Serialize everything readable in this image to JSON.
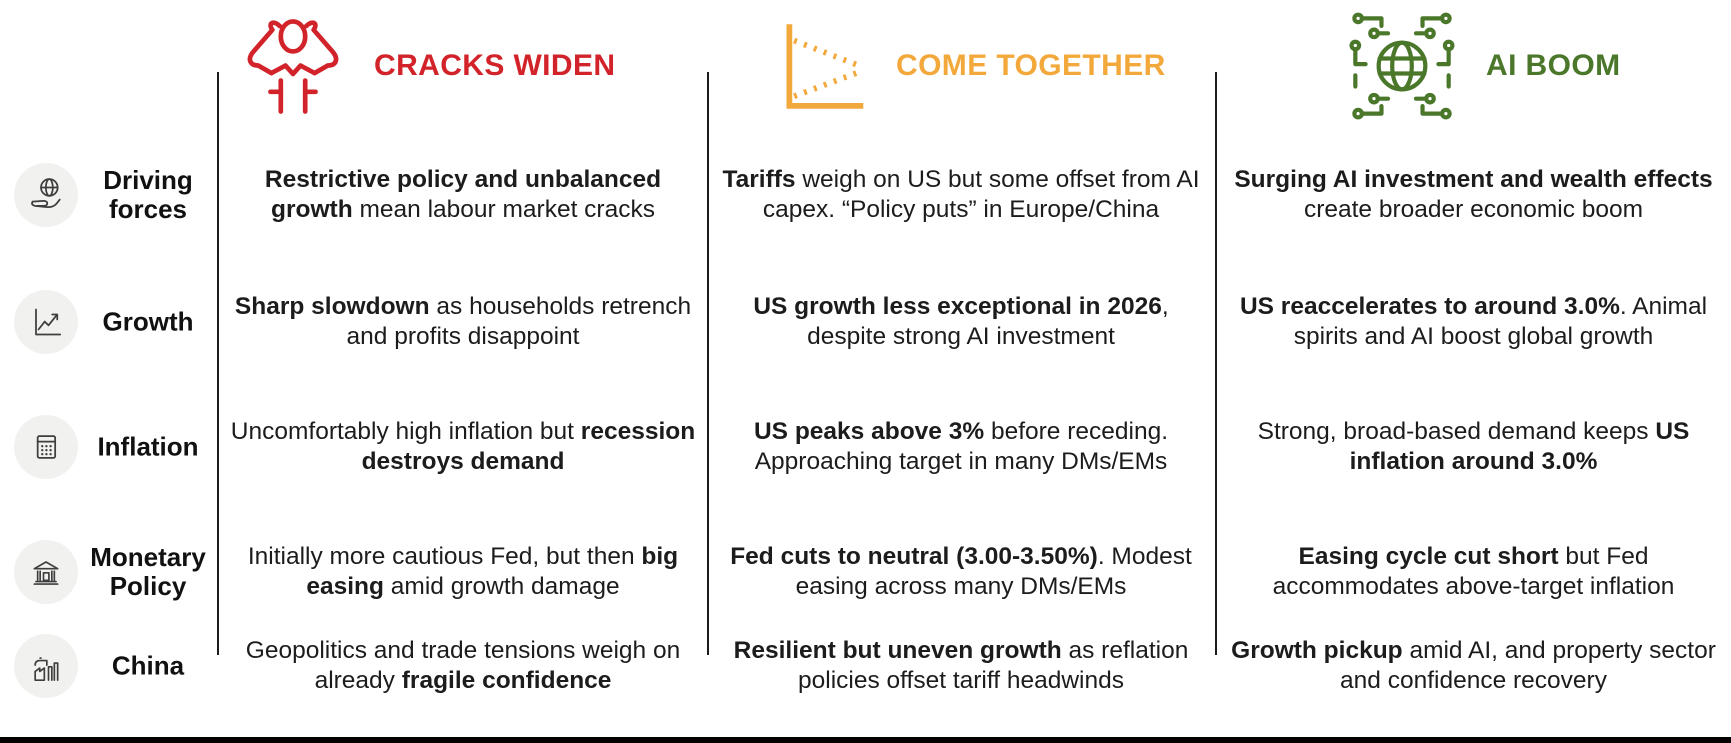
{
  "scenarios": [
    {
      "title": "CRACKS WIDEN",
      "color": "#D2232A",
      "icon": "person-head-in-hands-icon"
    },
    {
      "title": "COME TOGETHER",
      "color": "#F3A83B",
      "icon": "converging-lines-chart-icon"
    },
    {
      "title": "AI BOOM",
      "color": "#4A7729",
      "icon": "circuit-globe-icon"
    }
  ],
  "rows": [
    {
      "label": "Driving forces",
      "icon": "globe-in-hand-icon",
      "cells": [
        [
          {
            "t": "Restrictive policy and unbalanced growth",
            "b": true
          },
          {
            "t": " mean labour market cracks",
            "b": false
          }
        ],
        [
          {
            "t": "Tariffs",
            "b": true
          },
          {
            "t": " weigh on US but some offset from AI capex. “Policy puts” in Europe/China",
            "b": false
          }
        ],
        [
          {
            "t": "Surging AI investment and wealth effects",
            "b": true
          },
          {
            "t": " create broader economic boom",
            "b": false
          }
        ]
      ]
    },
    {
      "label": "Growth",
      "icon": "line-chart-up-icon",
      "cells": [
        [
          {
            "t": "Sharp slowdown",
            "b": true
          },
          {
            "t": " as households retrench and profits disappoint",
            "b": false
          }
        ],
        [
          {
            "t": "US growth less exceptional in 2026",
            "b": true
          },
          {
            "t": ", despite strong AI investment",
            "b": false
          }
        ],
        [
          {
            "t": "US reaccelerates to around 3.0%",
            "b": true
          },
          {
            "t": ". Animal spirits and AI boost global growth",
            "b": false
          }
        ]
      ]
    },
    {
      "label": "Inflation",
      "icon": "calculator-icon",
      "cells": [
        [
          {
            "t": "Uncomfortably high inflation but ",
            "b": false
          },
          {
            "t": "recession destroys demand",
            "b": true
          }
        ],
        [
          {
            "t": "US peaks above 3%",
            "b": true
          },
          {
            "t": " before receding. Approaching target in many DMs/EMs",
            "b": false
          }
        ],
        [
          {
            "t": "Strong, broad-based demand keeps ",
            "b": false
          },
          {
            "t": "US inflation around 3.0%",
            "b": true
          }
        ]
      ]
    },
    {
      "label": "Monetary Policy",
      "icon": "bank-building-icon",
      "cells": [
        [
          {
            "t": "Initially more cautious Fed, but then ",
            "b": false
          },
          {
            "t": "big easing",
            "b": true
          },
          {
            "t": " amid growth damage",
            "b": false
          }
        ],
        [
          {
            "t": "Fed cuts to neutral (3.00-3.50%)",
            "b": true
          },
          {
            "t": ". Modest easing across many DMs/EMs",
            "b": false
          }
        ],
        [
          {
            "t": "Easing cycle cut short",
            "b": true
          },
          {
            "t": " but Fed accommodates above-target inflation",
            "b": false
          }
        ]
      ]
    },
    {
      "label": "China",
      "icon": "factory-icon",
      "cells": [
        [
          {
            "t": "Geopolitics and trade tensions weigh on already ",
            "b": false
          },
          {
            "t": "fragile confidence",
            "b": true
          }
        ],
        [
          {
            "t": "Resilient but uneven growth",
            "b": true
          },
          {
            "t": " as reflation policies offset tariff headwinds",
            "b": false
          }
        ],
        [
          {
            "t": "Growth pickup",
            "b": true
          },
          {
            "t": " amid AI, and property sector and confidence recovery",
            "b": false
          }
        ]
      ]
    }
  ]
}
